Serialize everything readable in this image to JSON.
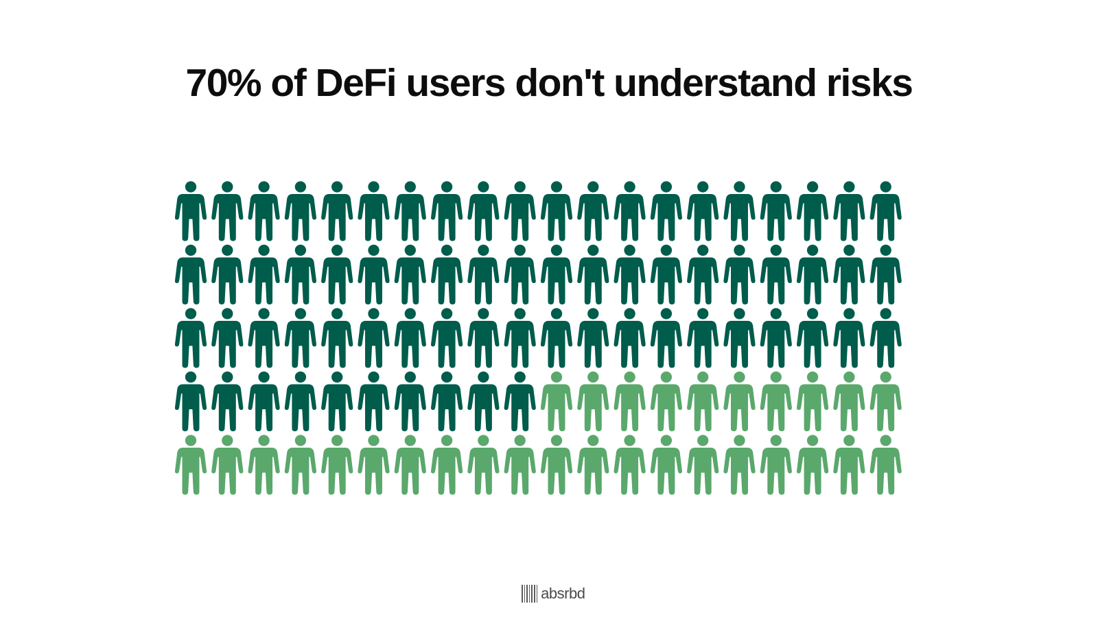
{
  "title": "70% of DeFi users don't understand risks",
  "brand": {
    "name": "absrbd",
    "logo_icon": "barcode-logo-icon"
  },
  "chart_data": {
    "type": "pictogram",
    "icon": "person-icon",
    "title": "70% of DeFi users don't understand risks",
    "total": 100,
    "rows": 5,
    "columns": 20,
    "fill_order": "row-major",
    "series": [
      {
        "value": 70,
        "color": "#005c4b"
      },
      {
        "value": 30,
        "color": "#5aa86c"
      }
    ]
  }
}
